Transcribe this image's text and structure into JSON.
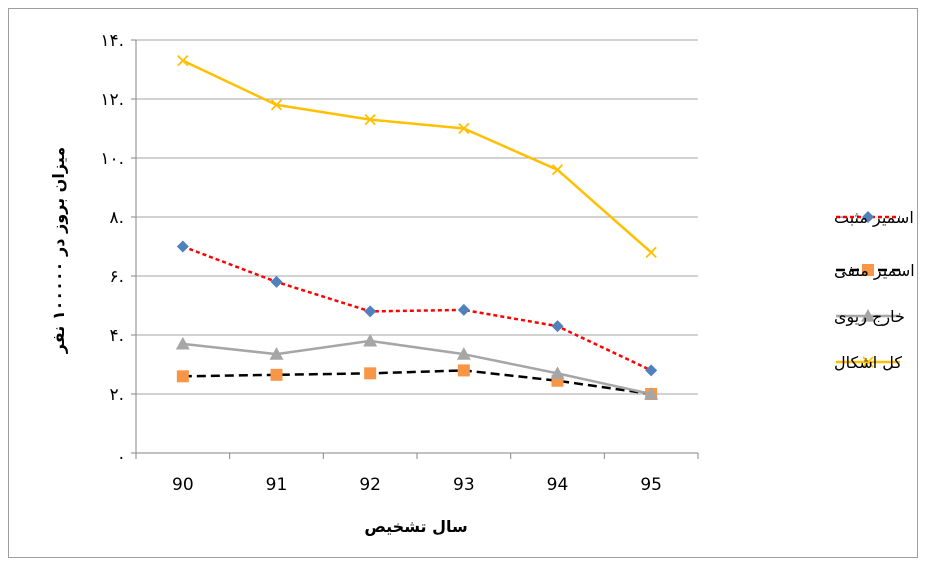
{
  "chart_data": {
    "type": "line",
    "categories": [
      "90",
      "91",
      "92",
      "93",
      "94",
      "95"
    ],
    "xlabel": "سال تشخیص",
    "ylabel": "میزان بروز در ۱۰۰۰۰۰ نفر",
    "ylim": [
      0,
      14
    ],
    "yticks": [
      0,
      2,
      4,
      6,
      8,
      10,
      12,
      14
    ],
    "ytick_labels": [
      ".",
      "۲.",
      "۴.",
      "۶.",
      "۸.",
      "۱۰.",
      "۱۲.",
      "۱۴."
    ],
    "grid": true,
    "legend_position": "right",
    "series": [
      {
        "name": "اسمیر مثبت",
        "values": [
          7.0,
          5.8,
          4.8,
          4.85,
          4.3,
          2.8
        ],
        "color": "#ff0000",
        "marker": "diamond",
        "marker_color": "#4f81bd",
        "dash": "4,3",
        "width": 2.5
      },
      {
        "name": "اسمیر منفی",
        "values": [
          2.6,
          2.65,
          2.7,
          2.8,
          2.45,
          2.0
        ],
        "color": "#000000",
        "marker": "square",
        "marker_color": "#f79646",
        "dash": "9,5",
        "width": 2.5
      },
      {
        "name": "خارج ریوی",
        "values": [
          3.7,
          3.35,
          3.8,
          3.35,
          2.7,
          2.0
        ],
        "color": "#a6a6a6",
        "marker": "triangle",
        "marker_color": "#a6a6a6",
        "dash": "",
        "width": 2.5
      },
      {
        "name": "کل اشکال",
        "values": [
          13.3,
          11.8,
          11.3,
          11.0,
          9.6,
          6.8
        ],
        "color": "#ffc000",
        "marker": "x",
        "marker_color": "#ffc000",
        "dash": "",
        "width": 2.5
      }
    ]
  }
}
